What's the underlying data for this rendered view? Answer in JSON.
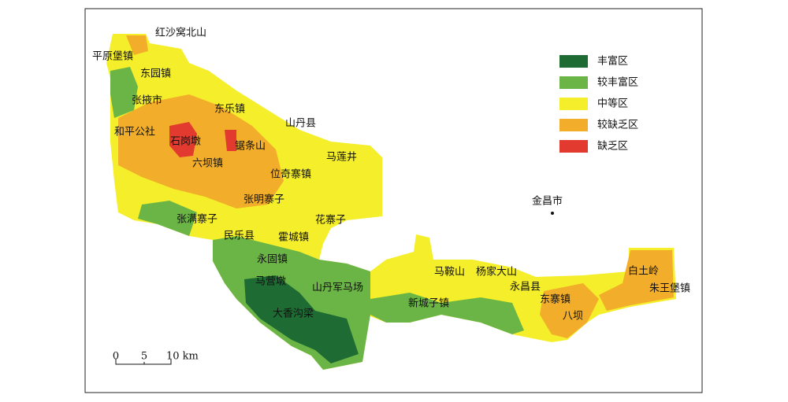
{
  "map": {
    "places": [
      "红沙窝北山",
      "平原堡镇",
      "东园镇",
      "张掖市",
      "东乐镇",
      "山丹县",
      "和平公社",
      "石岗墩",
      "锯条山",
      "马莲井",
      "六坝镇",
      "位奇寨镇",
      "张明寨子",
      "金昌市",
      "张满寨子",
      "花寨子",
      "民乐县",
      "霍城镇",
      "永固镇",
      "马鞍山",
      "杨家大山",
      "白土岭",
      "马营墩",
      "山丹军马场",
      "永昌县",
      "朱王堡镇",
      "东寨镇",
      "新城子镇",
      "大香沟梁",
      "八坝"
    ],
    "legend": [
      "丰富区",
      "较丰富区",
      "中等区",
      "较缺乏区",
      "缺乏区"
    ],
    "scale_bar": [
      "0",
      "5",
      "10 km"
    ]
  }
}
